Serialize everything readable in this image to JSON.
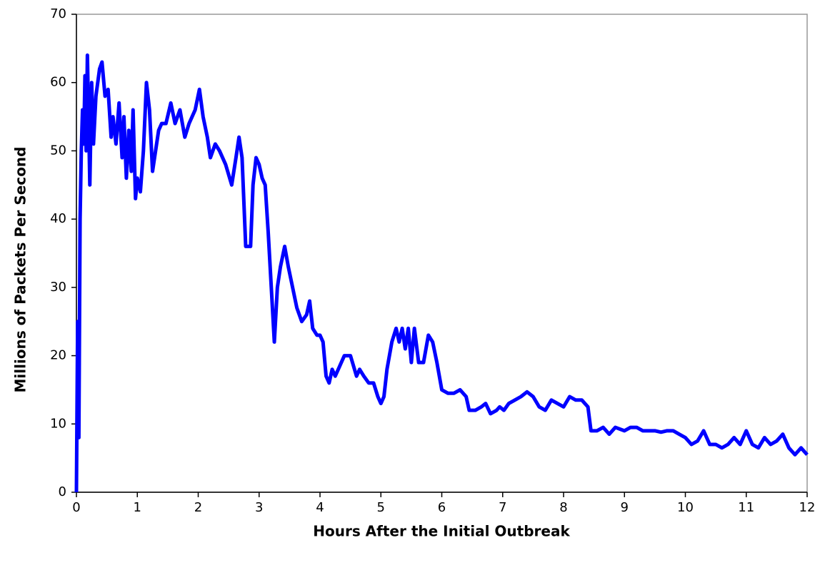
{
  "chart_data": {
    "type": "line",
    "x_label": "Hours After the Initial Outbreak",
    "y_label": "Millions of Packets Per Second",
    "xlim": [
      0,
      12
    ],
    "xticks": [
      0,
      1,
      2,
      3,
      4,
      5,
      6,
      7,
      8,
      9,
      10,
      11,
      12
    ],
    "ylim": [
      0,
      70
    ],
    "yticks": [
      0,
      10,
      20,
      30,
      40,
      50,
      60,
      70
    ],
    "grid": false,
    "series": [
      {
        "color": "#0000ff",
        "x": [
          0,
          0.02,
          0.04,
          0.06,
          0.08,
          0.1,
          0.12,
          0.14,
          0.16,
          0.18,
          0.2,
          0.22,
          0.25,
          0.28,
          0.32,
          0.38,
          0.42,
          0.47,
          0.52,
          0.57,
          0.6,
          0.65,
          0.7,
          0.75,
          0.78,
          0.82,
          0.86,
          0.9,
          0.93,
          0.97,
          1.0,
          1.05,
          1.1,
          1.15,
          1.2,
          1.25,
          1.3,
          1.35,
          1.4,
          1.47,
          1.55,
          1.62,
          1.7,
          1.78,
          1.85,
          1.95,
          2.02,
          2.08,
          2.15,
          2.2,
          2.28,
          2.35,
          2.45,
          2.55,
          2.62,
          2.67,
          2.72,
          2.78,
          2.82,
          2.86,
          2.9,
          2.95,
          3.0,
          3.05,
          3.1,
          3.15,
          3.2,
          3.25,
          3.3,
          3.35,
          3.42,
          3.48,
          3.55,
          3.62,
          3.7,
          3.78,
          3.83,
          3.88,
          3.95,
          4.0,
          4.05,
          4.1,
          4.15,
          4.2,
          4.25,
          4.3,
          4.4,
          4.5,
          4.6,
          4.65,
          4.72,
          4.8,
          4.88,
          4.95,
          5.0,
          5.05,
          5.1,
          5.18,
          5.25,
          5.3,
          5.35,
          5.4,
          5.45,
          5.5,
          5.55,
          5.62,
          5.7,
          5.78,
          5.85,
          5.92,
          6.0,
          6.1,
          6.2,
          6.3,
          6.4,
          6.45,
          6.55,
          6.65,
          6.72,
          6.8,
          6.9,
          6.95,
          7.02,
          7.1,
          7.2,
          7.3,
          7.4,
          7.5,
          7.6,
          7.7,
          7.8,
          7.9,
          8.0,
          8.1,
          8.2,
          8.3,
          8.4,
          8.45,
          8.55,
          8.65,
          8.75,
          8.85,
          9.0,
          9.1,
          9.2,
          9.3,
          9.4,
          9.5,
          9.6,
          9.7,
          9.8,
          9.9,
          10.0,
          10.1,
          10.2,
          10.3,
          10.4,
          10.5,
          10.6,
          10.7,
          10.8,
          10.9,
          11.0,
          11.1,
          11.2,
          11.3,
          11.4,
          11.5,
          11.6,
          11.7,
          11.8,
          11.9,
          12.0
        ],
        "values": [
          0,
          25,
          8,
          40,
          50,
          56,
          51,
          61,
          50,
          64,
          55,
          45,
          60,
          51,
          58,
          62,
          63,
          58,
          59,
          52,
          55,
          51,
          57,
          49,
          55,
          46,
          53,
          47,
          56,
          43,
          46,
          44,
          50,
          60,
          56,
          47,
          50,
          53,
          54,
          54,
          57,
          54,
          56,
          52,
          54,
          56,
          59,
          55,
          52,
          49,
          51,
          50,
          48,
          45,
          49,
          52,
          49,
          36,
          36,
          36,
          45,
          49,
          48,
          46,
          45,
          38,
          30,
          22,
          30,
          33,
          36,
          33,
          30,
          27,
          25,
          26,
          28,
          24,
          23,
          23,
          22,
          17,
          16,
          18,
          17,
          18,
          20,
          20,
          17,
          18,
          17,
          16,
          16,
          14,
          13,
          14,
          18,
          22,
          24,
          22,
          24,
          21,
          24,
          19,
          24,
          19,
          19,
          23,
          22,
          19,
          15,
          14.5,
          14.5,
          15,
          14,
          12,
          12,
          12.5,
          13,
          11.5,
          12,
          12.5,
          12,
          13,
          13.5,
          14,
          14.7,
          14,
          12.5,
          12,
          13.5,
          13,
          12.5,
          14,
          13.5,
          13.5,
          12.5,
          9,
          9,
          9.5,
          8.5,
          9.5,
          9,
          9.5,
          9.5,
          9,
          9,
          9,
          8.8,
          9,
          9,
          8.5,
          8,
          7,
          7.5,
          9,
          7,
          7,
          6.5,
          7,
          8,
          7,
          9,
          7,
          6.5,
          8,
          7,
          7.5,
          8.5,
          6.5,
          5.5,
          6.5,
          5.5
        ]
      }
    ]
  }
}
